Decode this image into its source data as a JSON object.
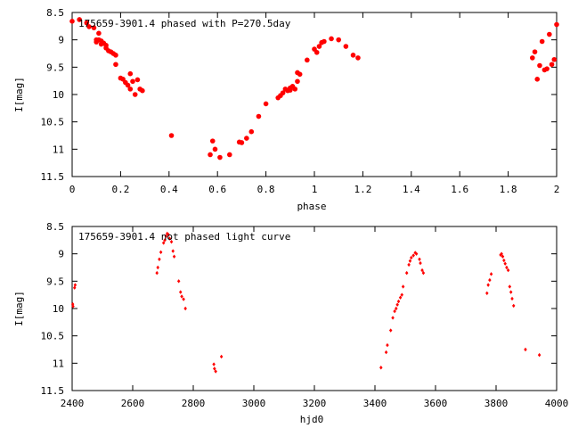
{
  "chart_data": [
    {
      "type": "scatter",
      "title": "175659-3901.4 phased with P=270.5day",
      "xlabel": "phase",
      "ylabel": "I[mag]",
      "xlim": [
        0,
        2
      ],
      "ylim": [
        11.5,
        8.5
      ],
      "y_inverted": true,
      "xticks": [
        "0",
        "0.2",
        "0.4",
        "0.6",
        "0.8",
        "1",
        "1.2",
        "1.4",
        "1.6",
        "1.8",
        "2"
      ],
      "yticks": [
        "8.5",
        "9",
        "9.5",
        "10",
        "10.5",
        "11",
        "11.5"
      ],
      "marker_color": "#ff0000",
      "marker": "filled-circle",
      "grid": false,
      "points": [
        [
          0.0,
          8.66
        ],
        [
          0.03,
          8.63
        ],
        [
          0.06,
          8.69
        ],
        [
          0.07,
          8.76
        ],
        [
          0.09,
          8.78
        ],
        [
          0.1,
          9.0
        ],
        [
          0.1,
          9.04
        ],
        [
          0.11,
          8.88
        ],
        [
          0.11,
          9.0
        ],
        [
          0.12,
          9.02
        ],
        [
          0.12,
          9.08
        ],
        [
          0.13,
          9.06
        ],
        [
          0.14,
          9.1
        ],
        [
          0.14,
          9.15
        ],
        [
          0.15,
          9.2
        ],
        [
          0.16,
          9.22
        ],
        [
          0.17,
          9.25
        ],
        [
          0.18,
          9.28
        ],
        [
          0.18,
          9.45
        ],
        [
          0.2,
          9.7
        ],
        [
          0.21,
          9.72
        ],
        [
          0.22,
          9.78
        ],
        [
          0.23,
          9.83
        ],
        [
          0.24,
          9.62
        ],
        [
          0.24,
          9.9
        ],
        [
          0.25,
          9.76
        ],
        [
          0.26,
          10.0
        ],
        [
          0.27,
          9.73
        ],
        [
          0.28,
          9.9
        ],
        [
          0.29,
          9.93
        ],
        [
          0.41,
          10.75
        ],
        [
          0.57,
          11.1
        ],
        [
          0.58,
          10.85
        ],
        [
          0.59,
          11.0
        ],
        [
          0.61,
          11.15
        ],
        [
          0.65,
          11.1
        ],
        [
          0.69,
          10.87
        ],
        [
          0.7,
          10.88
        ],
        [
          0.72,
          10.8
        ],
        [
          0.74,
          10.68
        ],
        [
          0.77,
          10.4
        ],
        [
          0.8,
          10.17
        ],
        [
          0.85,
          10.06
        ],
        [
          0.86,
          10.02
        ],
        [
          0.87,
          9.97
        ],
        [
          0.88,
          9.9
        ],
        [
          0.89,
          9.93
        ],
        [
          0.9,
          9.88
        ],
        [
          0.9,
          9.92
        ],
        [
          0.91,
          9.85
        ],
        [
          0.92,
          9.9
        ],
        [
          0.93,
          9.76
        ],
        [
          0.93,
          9.6
        ],
        [
          0.94,
          9.63
        ],
        [
          0.97,
          9.37
        ],
        [
          1.0,
          9.17
        ],
        [
          1.01,
          9.23
        ],
        [
          1.02,
          9.12
        ],
        [
          1.03,
          9.05
        ],
        [
          1.04,
          9.03
        ],
        [
          1.07,
          8.98
        ],
        [
          1.1,
          9.0
        ],
        [
          1.13,
          9.12
        ],
        [
          1.16,
          9.28
        ],
        [
          1.18,
          9.33
        ],
        [
          1.9,
          9.33
        ],
        [
          1.91,
          9.22
        ],
        [
          1.92,
          9.72
        ],
        [
          1.93,
          9.47
        ],
        [
          1.94,
          9.03
        ],
        [
          1.95,
          9.55
        ],
        [
          1.96,
          9.53
        ],
        [
          1.97,
          8.9
        ],
        [
          1.98,
          9.45
        ],
        [
          1.99,
          9.36
        ],
        [
          2.0,
          8.72
        ]
      ]
    },
    {
      "type": "scatter",
      "title": "175659-3901.4 not phased light curve",
      "xlabel": "hjd0",
      "ylabel": "I[mag]",
      "xlim": [
        2400,
        4000
      ],
      "ylim": [
        11.5,
        8.5
      ],
      "y_inverted": true,
      "xticks": [
        "2400",
        "2600",
        "2800",
        "3000",
        "3200",
        "3400",
        "3600",
        "3800",
        "4000"
      ],
      "yticks": [
        "8.5",
        "9",
        "9.5",
        "10",
        "10.5",
        "11",
        "11.5"
      ],
      "marker_color": "#ff0000",
      "marker": "small-diamond",
      "grid": false,
      "points": [
        [
          2402,
          9.92
        ],
        [
          2403,
          9.96
        ],
        [
          2408,
          9.62
        ],
        [
          2410,
          9.57
        ],
        [
          2680,
          9.35
        ],
        [
          2683,
          9.25
        ],
        [
          2688,
          9.1
        ],
        [
          2693,
          8.97
        ],
        [
          2702,
          8.8
        ],
        [
          2706,
          8.75
        ],
        [
          2710,
          8.68
        ],
        [
          2714,
          8.63
        ],
        [
          2718,
          8.65
        ],
        [
          2722,
          8.72
        ],
        [
          2728,
          8.78
        ],
        [
          2733,
          8.95
        ],
        [
          2737,
          9.05
        ],
        [
          2752,
          9.5
        ],
        [
          2758,
          9.7
        ],
        [
          2762,
          9.78
        ],
        [
          2768,
          9.83
        ],
        [
          2774,
          10.0
        ],
        [
          2868,
          11.02
        ],
        [
          2870,
          11.1
        ],
        [
          2874,
          11.15
        ],
        [
          2893,
          10.88
        ],
        [
          3420,
          11.08
        ],
        [
          3437,
          10.8
        ],
        [
          3441,
          10.67
        ],
        [
          3452,
          10.4
        ],
        [
          3459,
          10.17
        ],
        [
          3465,
          10.05
        ],
        [
          3470,
          10.0
        ],
        [
          3474,
          9.93
        ],
        [
          3478,
          9.87
        ],
        [
          3484,
          9.8
        ],
        [
          3489,
          9.75
        ],
        [
          3493,
          9.6
        ],
        [
          3505,
          9.35
        ],
        [
          3512,
          9.2
        ],
        [
          3516,
          9.13
        ],
        [
          3520,
          9.07
        ],
        [
          3527,
          9.03
        ],
        [
          3533,
          8.98
        ],
        [
          3537,
          9.0
        ],
        [
          3547,
          9.1
        ],
        [
          3550,
          9.17
        ],
        [
          3556,
          9.3
        ],
        [
          3560,
          9.35
        ],
        [
          3770,
          9.72
        ],
        [
          3774,
          9.57
        ],
        [
          3779,
          9.48
        ],
        [
          3784,
          9.37
        ],
        [
          3815,
          9.02
        ],
        [
          3818,
          9.0
        ],
        [
          3822,
          9.05
        ],
        [
          3826,
          9.12
        ],
        [
          3830,
          9.18
        ],
        [
          3835,
          9.25
        ],
        [
          3840,
          9.3
        ],
        [
          3845,
          9.6
        ],
        [
          3849,
          9.7
        ],
        [
          3853,
          9.82
        ],
        [
          3858,
          9.95
        ],
        [
          3897,
          10.75
        ],
        [
          3943,
          10.85
        ]
      ]
    }
  ]
}
